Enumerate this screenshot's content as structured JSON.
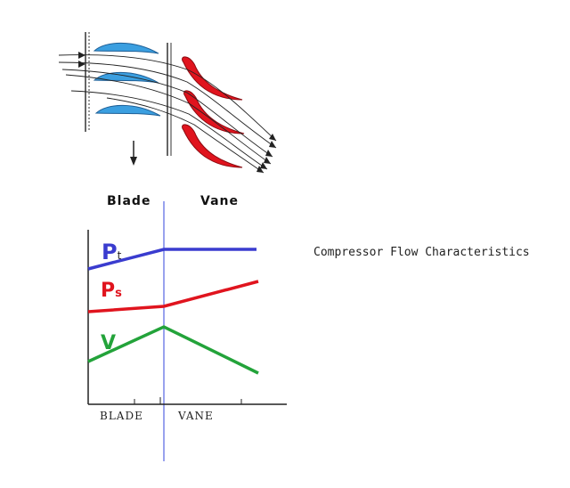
{
  "caption": "Compressor Flow Characteristics",
  "labels": {
    "blade_top": "Blade",
    "vane_top": "Vane",
    "blade_axis": "BLADE",
    "vane_axis": "VANE"
  },
  "curves": {
    "pt": {
      "symbol": "P",
      "subscript": "t",
      "color": "#3a3ccf"
    },
    "ps": {
      "symbol": "P",
      "subscript": "s",
      "color": "#e0141e"
    },
    "v": {
      "symbol": "V",
      "color": "#23a33a"
    }
  },
  "colors": {
    "blade": "#3b9fe0",
    "vane": "#e0141e",
    "divider": "#3344dd"
  }
}
